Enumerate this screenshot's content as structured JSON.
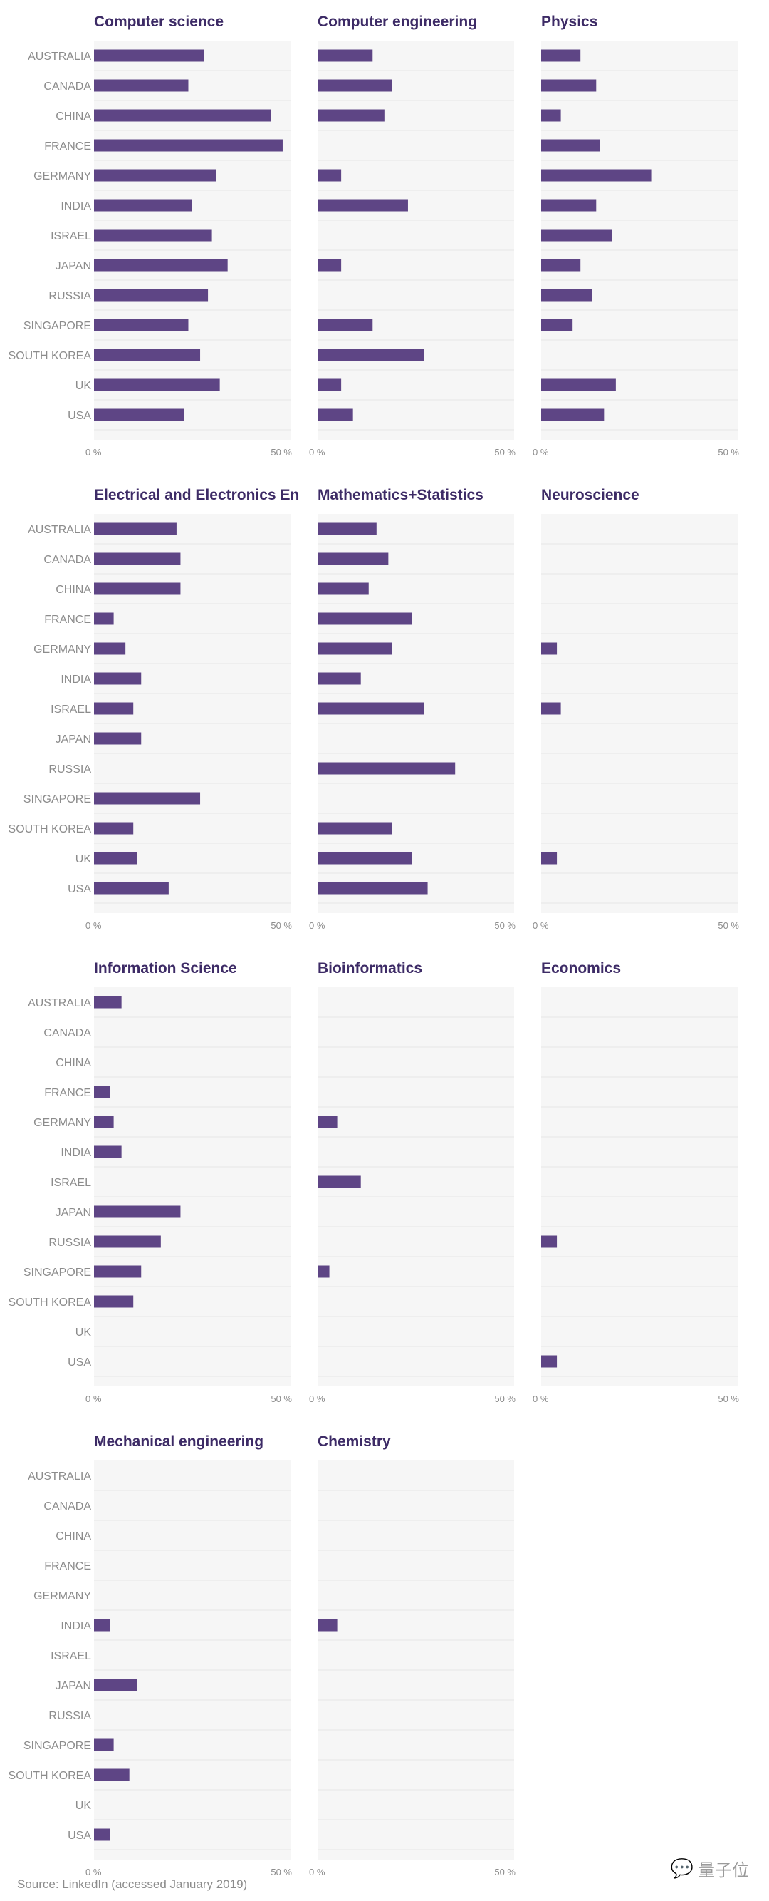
{
  "source": "Source: LinkedIn (accessed January 2019)",
  "watermark": {
    "icon": "wechat-icon",
    "text": "量子位"
  },
  "colors": {
    "bar": "#5e4585",
    "title": "#3d2b66",
    "panel_bg": "#f6f6f6",
    "axis_text": "#8c8c8c"
  },
  "chart_data": {
    "type": "bar",
    "orientation": "horizontal",
    "layout": "small-multiples",
    "categories": [
      "AUSTRALIA",
      "CANADA",
      "CHINA",
      "FRANCE",
      "GERMANY",
      "INDIA",
      "ISRAEL",
      "JAPAN",
      "RUSSIA",
      "SINGAPORE",
      "SOUTH KOREA",
      "UK",
      "USA"
    ],
    "xlim": [
      0,
      50
    ],
    "xticks": [
      "0 %",
      "50 %"
    ],
    "grid": true,
    "panels": [
      {
        "title": "Computer science",
        "values": [
          28,
          24,
          45,
          48,
          31,
          25,
          30,
          34,
          29,
          24,
          27,
          32,
          23
        ]
      },
      {
        "title": "Computer engineering",
        "values": [
          14,
          19,
          17,
          0,
          6,
          23,
          0,
          6,
          0,
          14,
          27,
          6,
          9
        ]
      },
      {
        "title": "Physics",
        "values": [
          10,
          14,
          5,
          15,
          28,
          14,
          18,
          10,
          13,
          8,
          0,
          19,
          16
        ]
      },
      {
        "title": "Electrical and Electronics Engi",
        "values": [
          21,
          22,
          22,
          5,
          8,
          12,
          10,
          12,
          0,
          27,
          10,
          11,
          19
        ]
      },
      {
        "title": "Mathematics+Statistics",
        "values": [
          15,
          18,
          13,
          24,
          19,
          11,
          27,
          0,
          35,
          0,
          19,
          24,
          28
        ]
      },
      {
        "title": "Neuroscience",
        "values": [
          0,
          0,
          0,
          0,
          4,
          0,
          5,
          0,
          0,
          0,
          0,
          4,
          0
        ]
      },
      {
        "title": "Information Science",
        "values": [
          7,
          0,
          0,
          4,
          5,
          7,
          0,
          22,
          17,
          12,
          10,
          0,
          0
        ]
      },
      {
        "title": "Bioinformatics",
        "values": [
          0,
          0,
          0,
          0,
          5,
          0,
          11,
          0,
          0,
          3,
          0,
          0,
          0
        ]
      },
      {
        "title": "Economics",
        "values": [
          0,
          0,
          0,
          0,
          0,
          0,
          0,
          0,
          4,
          0,
          0,
          0,
          4
        ]
      },
      {
        "title": "Mechanical engineering",
        "values": [
          0,
          0,
          0,
          0,
          0,
          4,
          0,
          11,
          0,
          5,
          9,
          0,
          4
        ]
      },
      {
        "title": "Chemistry",
        "values": [
          0,
          0,
          0,
          0,
          0,
          5,
          0,
          0,
          0,
          0,
          0,
          0,
          0
        ]
      }
    ]
  }
}
